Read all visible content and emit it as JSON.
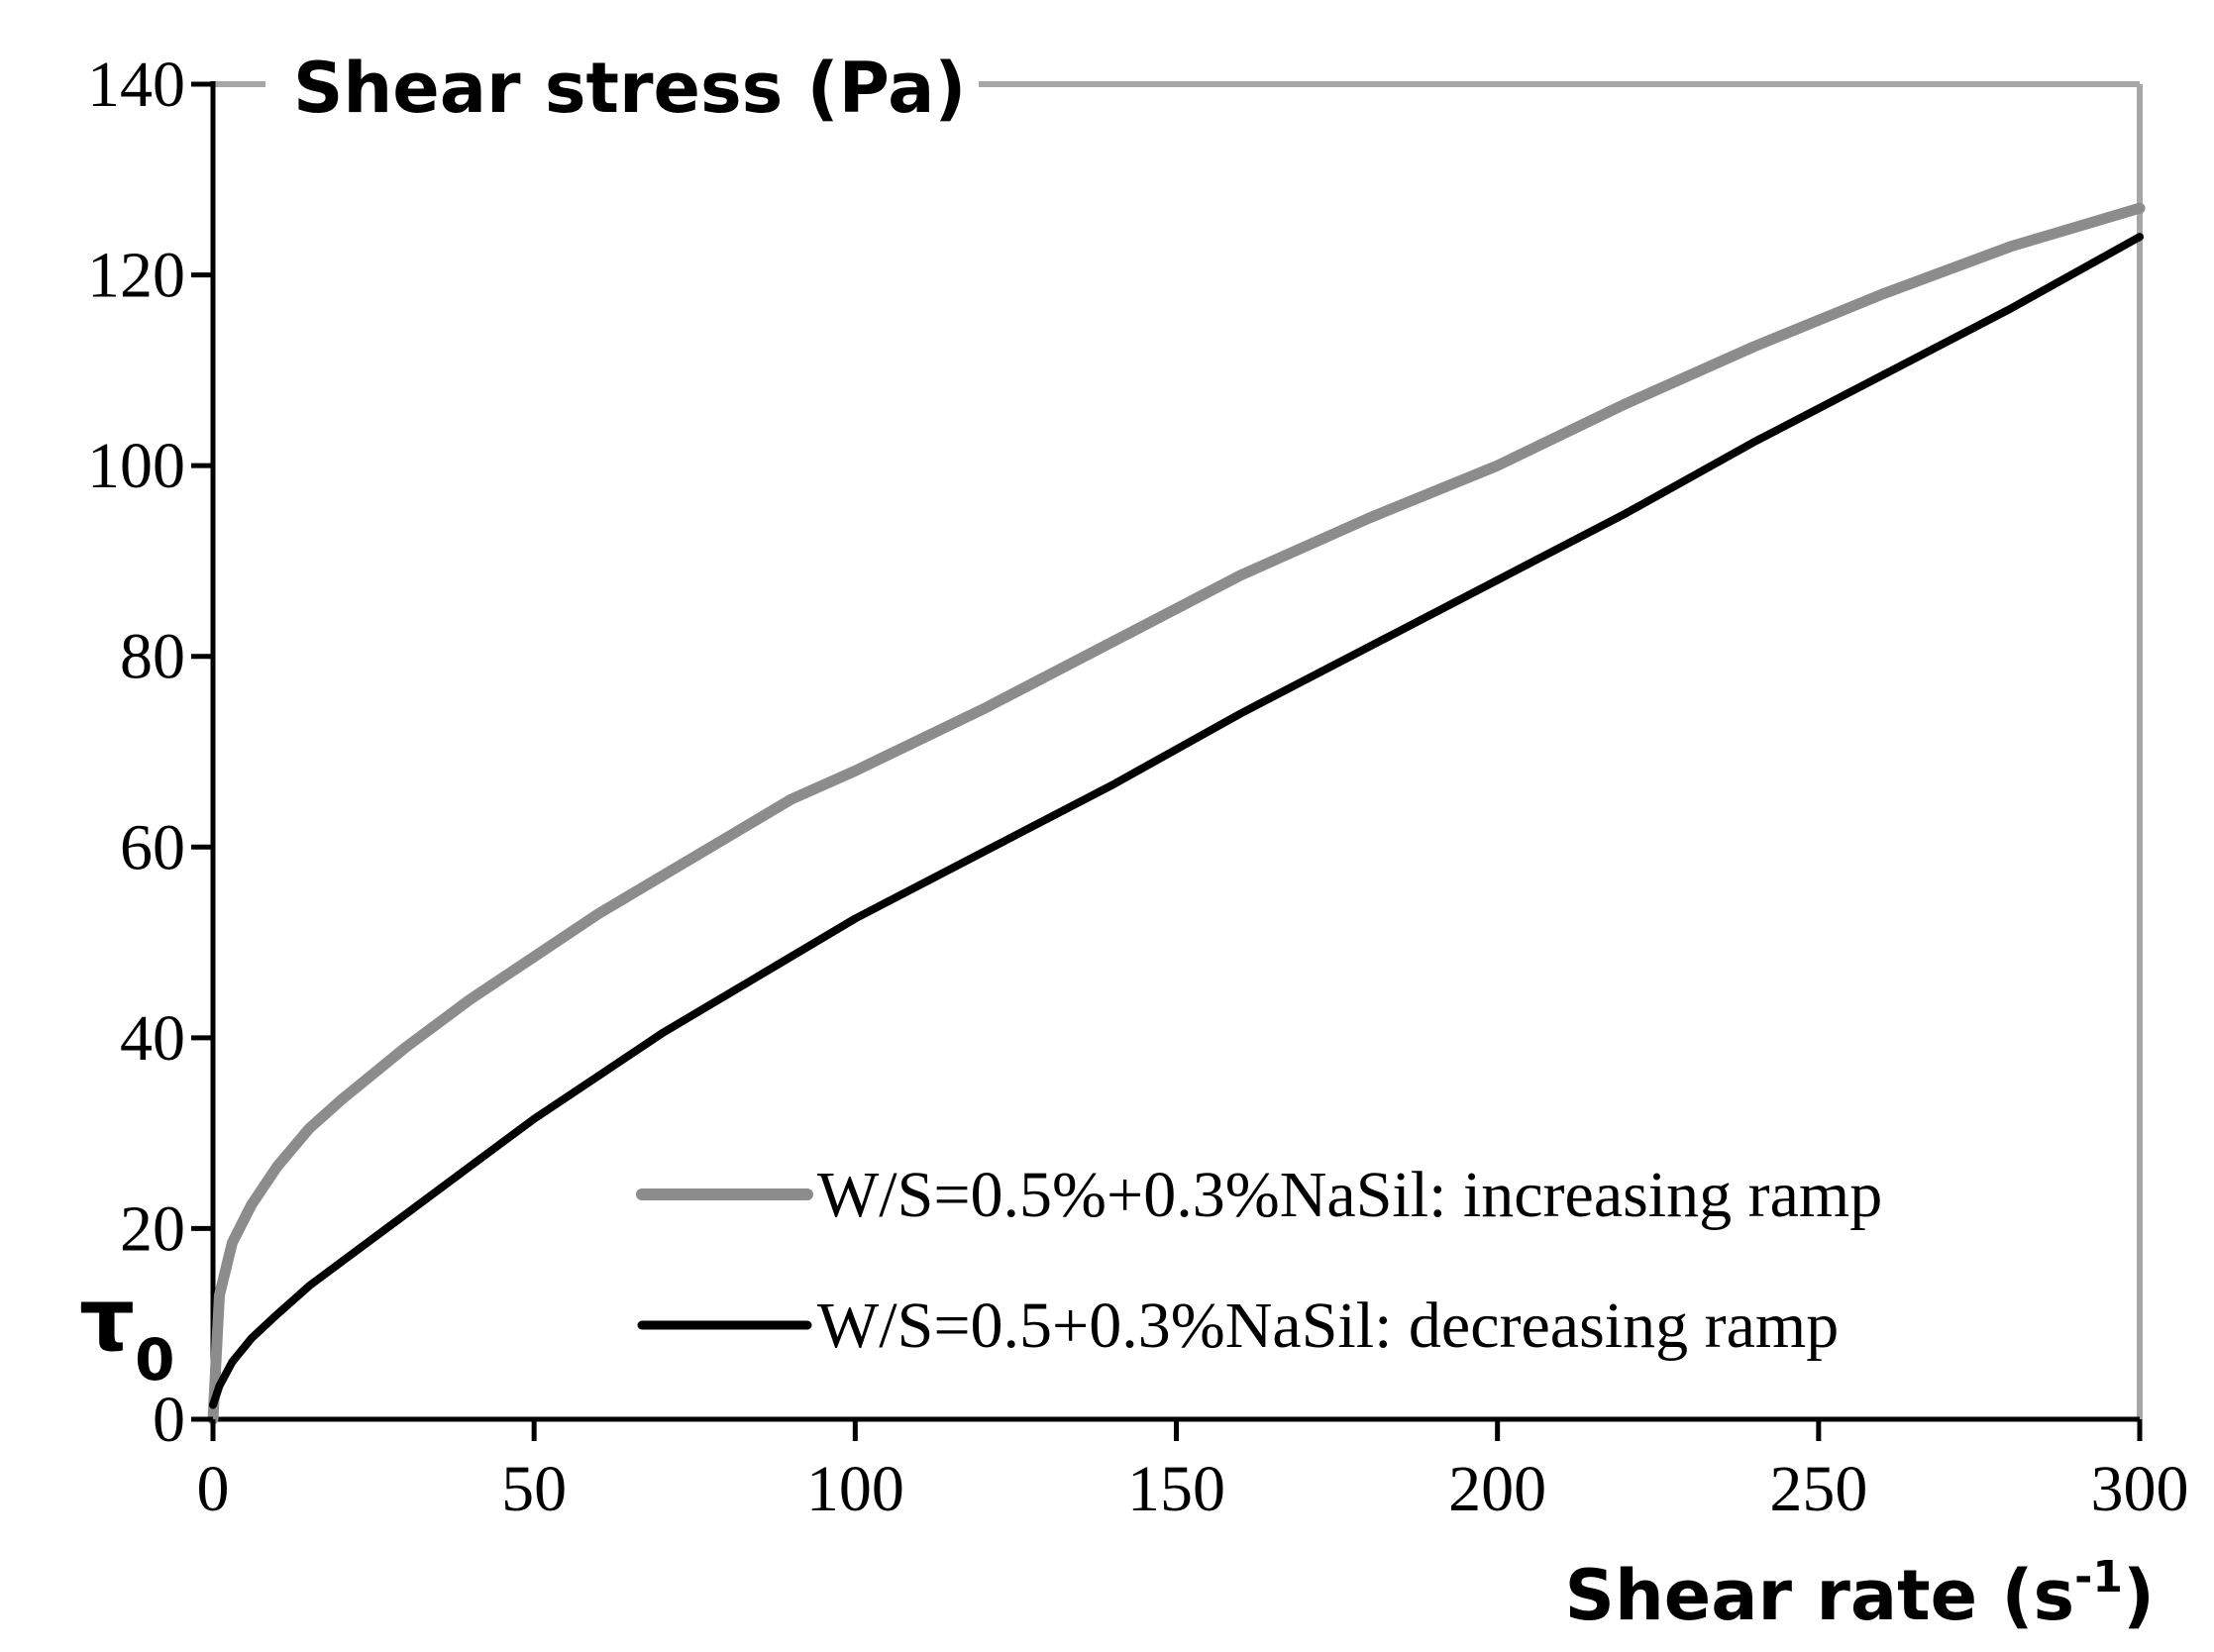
{
  "chart_data": {
    "type": "line",
    "ylabel": "Shear stress (Pa)",
    "xlabel_main": "Shear rate (s",
    "xlabel_sup": "-1",
    "xlabel_close": ")",
    "tau_symbol": "τ",
    "tau_subscript": "0",
    "xlim": [
      0,
      300
    ],
    "ylim": [
      0,
      140
    ],
    "xticks": [
      0,
      50,
      100,
      150,
      200,
      250,
      300
    ],
    "yticks": [
      0,
      20,
      40,
      60,
      80,
      100,
      120,
      140
    ],
    "grid": false,
    "legend_position": "bottom-right",
    "series": [
      {
        "name": "W/S=0.5%+0.3%NaSil: increasing ramp",
        "color": "#8c8c8c",
        "x": [
          0,
          1,
          3,
          6,
          10,
          15,
          20,
          30,
          40,
          50,
          60,
          70,
          80,
          90,
          100,
          120,
          140,
          160,
          180,
          200,
          220,
          240,
          260,
          280,
          300
        ],
        "y": [
          0,
          13,
          18.5,
          22.5,
          26.5,
          30.5,
          33.5,
          39,
          44,
          48.5,
          53,
          57,
          61,
          65,
          68,
          74.5,
          81.5,
          88.5,
          94.5,
          100,
          106.5,
          112.5,
          118,
          123,
          127
        ]
      },
      {
        "name": "W/S=0.5+0.3%NaSil: decreasing ramp",
        "color": "#000000",
        "x": [
          0,
          1,
          3,
          6,
          10,
          15,
          20,
          30,
          40,
          50,
          60,
          70,
          80,
          90,
          100,
          120,
          140,
          160,
          180,
          200,
          220,
          240,
          260,
          280,
          300
        ],
        "y": [
          1.5,
          3.5,
          6,
          8.5,
          11,
          14,
          16.5,
          21.5,
          26.5,
          31.5,
          36,
          40.5,
          44.5,
          48.5,
          52.5,
          59.5,
          66.5,
          74,
          81,
          88,
          95,
          102.5,
          109.5,
          116.5,
          124
        ]
      }
    ]
  }
}
